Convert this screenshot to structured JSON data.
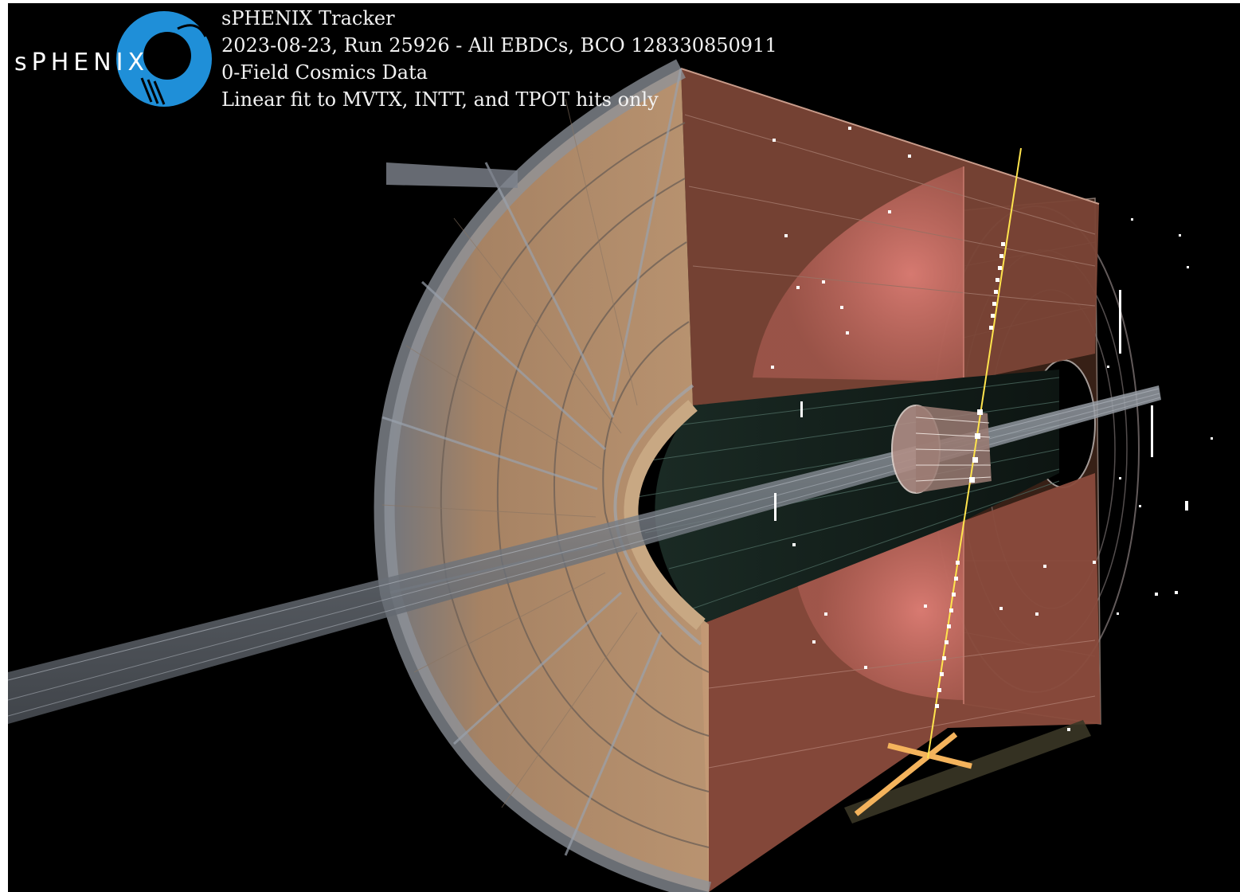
{
  "logo": {
    "text": "sPHENIX",
    "ring_color": "#1f8fd8"
  },
  "caption": {
    "lines": [
      "sPHENIX Tracker",
      "2023-08-23, Run 25926 - All EBDCs, BCO 128330850911",
      "0-Field Cosmics Data",
      "Linear fit to MVTX, INTT, and TPOT hits only"
    ]
  },
  "colors": {
    "background": "#000000",
    "caption_text": "#f2f2f2",
    "track": "#ffe44d",
    "hits": "#ffffff",
    "tpc_endcap": "#c79d74",
    "tpc_section": "#a0574a",
    "tpot": "#f4b35c"
  }
}
